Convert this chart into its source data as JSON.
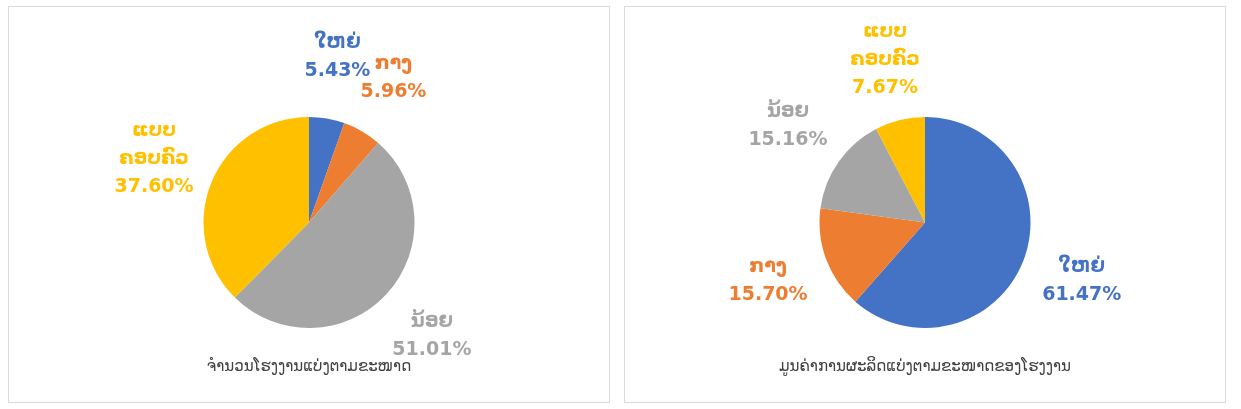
{
  "chart_data": [
    {
      "type": "pie",
      "title": "ຈຳນວນໂຮງງານແບ່ງຕາມຂະໜາດ",
      "categories": [
        "ໃຫຍ່",
        "ກາງ",
        "ນ້ອຍ",
        "ແບບ ຄອບຄົວ"
      ],
      "values": [
        5.43,
        5.96,
        51.01,
        37.6
      ],
      "colors": [
        "#4472c4",
        "#ed7d31",
        "#a5a5a5",
        "#ffc000"
      ],
      "value_labels": [
        "5.43%",
        "5.96%",
        "51.01%",
        "37.60%"
      ]
    },
    {
      "type": "pie",
      "title": "ມູນຄ່າການຜະລິດແບ່ງຕາມຂະໜາດຂອງໂຮງງານ",
      "categories": [
        "ໃຫຍ່",
        "ກາງ",
        "ນ້ອຍ",
        "ແບບ ຄອບຄົວ"
      ],
      "values": [
        61.47,
        15.7,
        15.16,
        7.67
      ],
      "colors": [
        "#4472c4",
        "#ed7d31",
        "#a5a5a5",
        "#ffc000"
      ],
      "value_labels": [
        "61.47%",
        "15.70%",
        "15.16%",
        "7.67%"
      ]
    }
  ]
}
